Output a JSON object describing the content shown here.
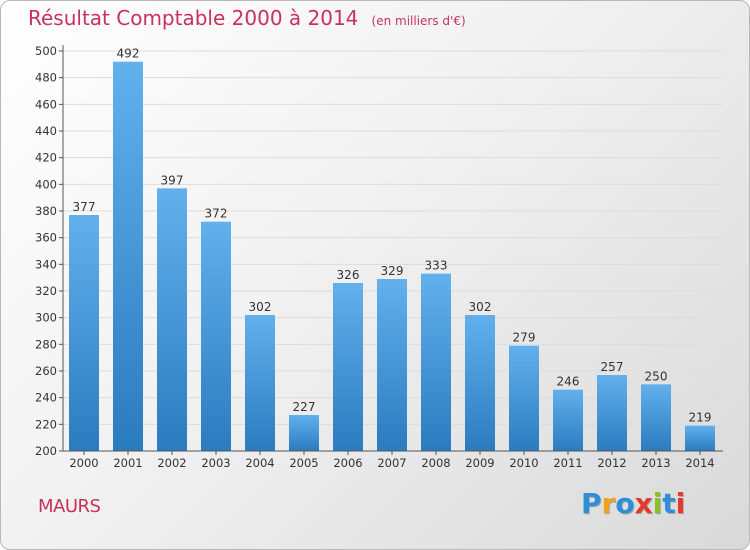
{
  "chart_data": {
    "type": "bar",
    "title": "Résultat Comptable 2000 à 2014",
    "subtitle": "(en milliers d'€)",
    "categories": [
      "2000",
      "2001",
      "2002",
      "2003",
      "2004",
      "2005",
      "2006",
      "2007",
      "2008",
      "2009",
      "2010",
      "2011",
      "2012",
      "2013",
      "2014"
    ],
    "values": [
      377,
      492,
      397,
      372,
      302,
      227,
      326,
      329,
      333,
      302,
      279,
      246,
      257,
      250,
      219
    ],
    "ylim": [
      200,
      500
    ],
    "ytick_step": 20,
    "grid": true,
    "xlabel": "",
    "ylabel": ""
  },
  "footer": {
    "city": "MAURS",
    "logo_letters": [
      "P",
      "r",
      "o",
      "x",
      "i",
      "t",
      "i"
    ],
    "logo_colors": [
      "#2e8fd8",
      "#f0a21a",
      "#2e8fd8",
      "#e33a2c",
      "#8bbf2a",
      "#2e8fd8",
      "#e33a2c"
    ]
  },
  "colors": {
    "accent": "#c8325a",
    "bar_top": "#62b0ec",
    "bar_bottom": "#2b7bbf"
  }
}
